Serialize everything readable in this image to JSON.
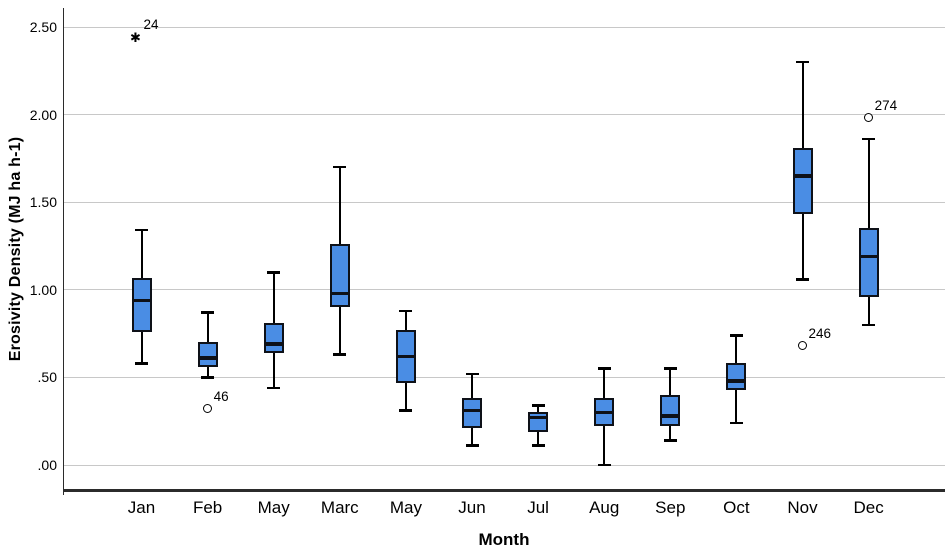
{
  "chart_data": {
    "type": "box",
    "title": "",
    "xlabel": "Month",
    "ylabel": "Erosivity Density (MJ ha h-1)",
    "categories": [
      "Jan",
      "Feb",
      "May",
      "Marc",
      "May",
      "Jun",
      "Jul",
      "Aug",
      "Sep",
      "Oct",
      "Nov",
      "Dec"
    ],
    "y_ticks": [
      {
        "label": "2.50",
        "value": 2.5
      },
      {
        "label": "2.00",
        "value": 2.0
      },
      {
        "label": "1.50",
        "value": 1.5
      },
      {
        "label": "1.00",
        "value": 1.0
      },
      {
        "label": ".50",
        "value": 0.5
      },
      {
        "label": ".00",
        "value": 0.0
      }
    ],
    "ylim": [
      -0.14,
      2.61
    ],
    "grid": "horizontal-only",
    "legend": "none",
    "boxes": [
      {
        "category": "Jan",
        "whisker_low": 0.58,
        "q1": 0.76,
        "median": 0.94,
        "q3": 1.07,
        "whisker_high": 1.34,
        "outliers": [
          {
            "value": 2.44,
            "label": "24",
            "shape": "star"
          }
        ]
      },
      {
        "category": "Feb",
        "whisker_low": 0.5,
        "q1": 0.56,
        "median": 0.61,
        "q3": 0.7,
        "whisker_high": 0.87,
        "outliers": [
          {
            "value": 0.32,
            "label": "46",
            "shape": "circle"
          }
        ]
      },
      {
        "category": "May",
        "whisker_low": 0.44,
        "q1": 0.64,
        "median": 0.69,
        "q3": 0.81,
        "whisker_high": 1.1,
        "outliers": []
      },
      {
        "category": "Marc",
        "whisker_low": 0.63,
        "q1": 0.9,
        "median": 0.98,
        "q3": 1.26,
        "whisker_high": 1.7,
        "outliers": []
      },
      {
        "category": "May",
        "whisker_low": 0.31,
        "q1": 0.47,
        "median": 0.62,
        "q3": 0.77,
        "whisker_high": 0.88,
        "outliers": []
      },
      {
        "category": "Jun",
        "whisker_low": 0.11,
        "q1": 0.21,
        "median": 0.31,
        "q3": 0.38,
        "whisker_high": 0.52,
        "outliers": []
      },
      {
        "category": "Jul",
        "whisker_low": 0.11,
        "q1": 0.19,
        "median": 0.27,
        "q3": 0.3,
        "whisker_high": 0.34,
        "outliers": []
      },
      {
        "category": "Aug",
        "whisker_low": 0.0,
        "q1": 0.22,
        "median": 0.3,
        "q3": 0.38,
        "whisker_high": 0.55,
        "outliers": []
      },
      {
        "category": "Sep",
        "whisker_low": 0.14,
        "q1": 0.22,
        "median": 0.28,
        "q3": 0.4,
        "whisker_high": 0.55,
        "outliers": []
      },
      {
        "category": "Oct",
        "whisker_low": 0.24,
        "q1": 0.43,
        "median": 0.48,
        "q3": 0.58,
        "whisker_high": 0.74,
        "outliers": []
      },
      {
        "category": "Nov",
        "whisker_low": 1.06,
        "q1": 1.43,
        "median": 1.65,
        "q3": 1.81,
        "whisker_high": 2.3,
        "outliers": [
          {
            "value": 0.68,
            "label": "246",
            "shape": "circle"
          }
        ]
      },
      {
        "category": "Dec",
        "whisker_low": 0.8,
        "q1": 0.96,
        "median": 1.19,
        "q3": 1.35,
        "whisker_high": 1.86,
        "outliers": [
          {
            "value": 1.98,
            "label": "274",
            "shape": "circle"
          }
        ]
      }
    ],
    "colors": {
      "box_fill": "#4a8de4",
      "box_border": "#0e1118",
      "median": "#0e1118",
      "whisker": "#000000",
      "gridline": "#c8c8c8",
      "axis": "#2b2b2b",
      "text": "#000000",
      "background": "#ffffff"
    }
  }
}
